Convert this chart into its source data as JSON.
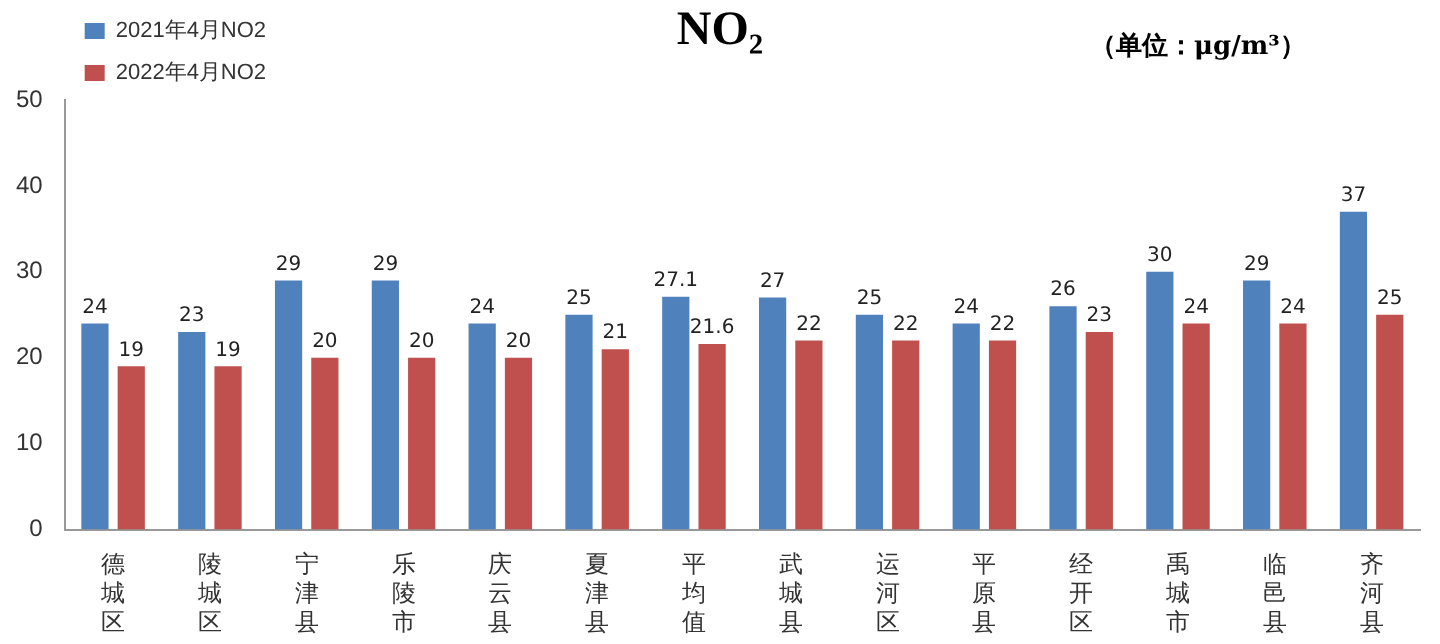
{
  "chart_data": {
    "type": "bar",
    "title": "NO₂",
    "annotations": [
      "（单位：μg/m³）"
    ],
    "categories": [
      "德城区",
      "陵城区",
      "宁津县",
      "乐陵市",
      "庆云县",
      "夏津县",
      "平均值",
      "武城县",
      "运河区",
      "平原县",
      "经开区",
      "禹城市",
      "临邑县",
      "齐河县"
    ],
    "series": [
      {
        "name": "2021年4月NO2",
        "color": "#4f81bd",
        "values": [
          24,
          23,
          29,
          29,
          24,
          25,
          27.1,
          27,
          25,
          24,
          26,
          30,
          29,
          37
        ]
      },
      {
        "name": "2022年4月NO2",
        "color": "#c0504d",
        "values": [
          19,
          19,
          20,
          20,
          20,
          21,
          21.6,
          22,
          22,
          22,
          23,
          24,
          24,
          25
        ]
      }
    ],
    "ylim": [
      0,
      50
    ],
    "yticks": [
      0,
      10,
      20,
      30,
      40,
      50
    ],
    "grid": false,
    "legend": "top left",
    "data_labels": true
  }
}
